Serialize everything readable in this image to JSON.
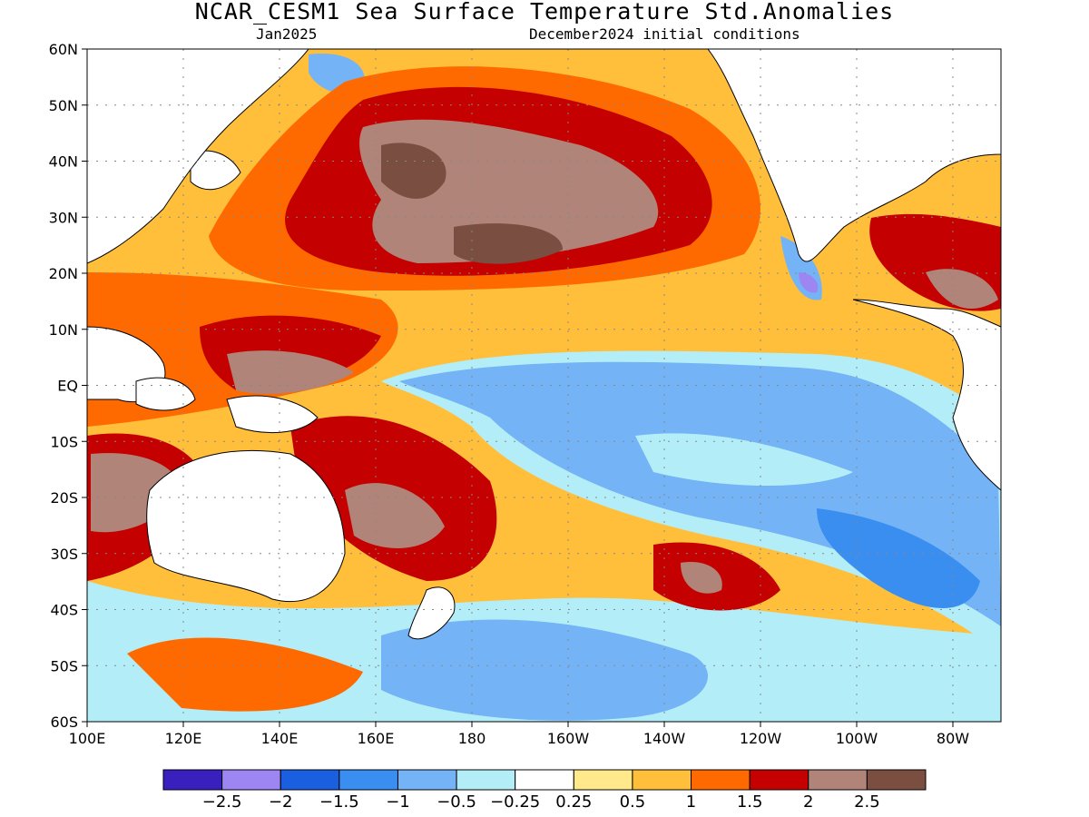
{
  "header": {
    "title": "NCAR_CESM1 Sea Surface Temperature Std.Anomalies",
    "valid_month": "Jan2025",
    "init_conditions": "December2024 initial conditions"
  },
  "map": {
    "lat_ticks": [
      "60N",
      "50N",
      "40N",
      "30N",
      "20N",
      "10N",
      "EQ",
      "10S",
      "20S",
      "30S",
      "40S",
      "50S",
      "60S"
    ],
    "lon_ticks": [
      "100E",
      "120E",
      "140E",
      "160E",
      "180",
      "160W",
      "140W",
      "120W",
      "100W",
      "80W"
    ],
    "lon_range": [
      100,
      290
    ],
    "lat_range": [
      -60,
      60
    ]
  },
  "colorbar": {
    "colors": [
      "#3a1fbf",
      "#9d85f2",
      "#1a5fe0",
      "#3a8ef0",
      "#74b3f6",
      "#b3eef8",
      "#ffffff",
      "#ffe98a",
      "#ffbf3a",
      "#ff6a00",
      "#c40000",
      "#b08478",
      "#7a4e40"
    ],
    "labels": [
      "−2.5",
      "−2",
      "−1.5",
      "−1",
      "−0.5",
      "−0.25",
      "0.25",
      "0.5",
      "1",
      "1.5",
      "2",
      "2.5"
    ]
  },
  "anomaly_regions": [
    {
      "level": "warm2.5",
      "color": "#7a4e40",
      "note": "North Pacific core"
    },
    {
      "level": "cool-1",
      "color": "#74b3f6",
      "note": "Equatorial east Pacific"
    }
  ]
}
